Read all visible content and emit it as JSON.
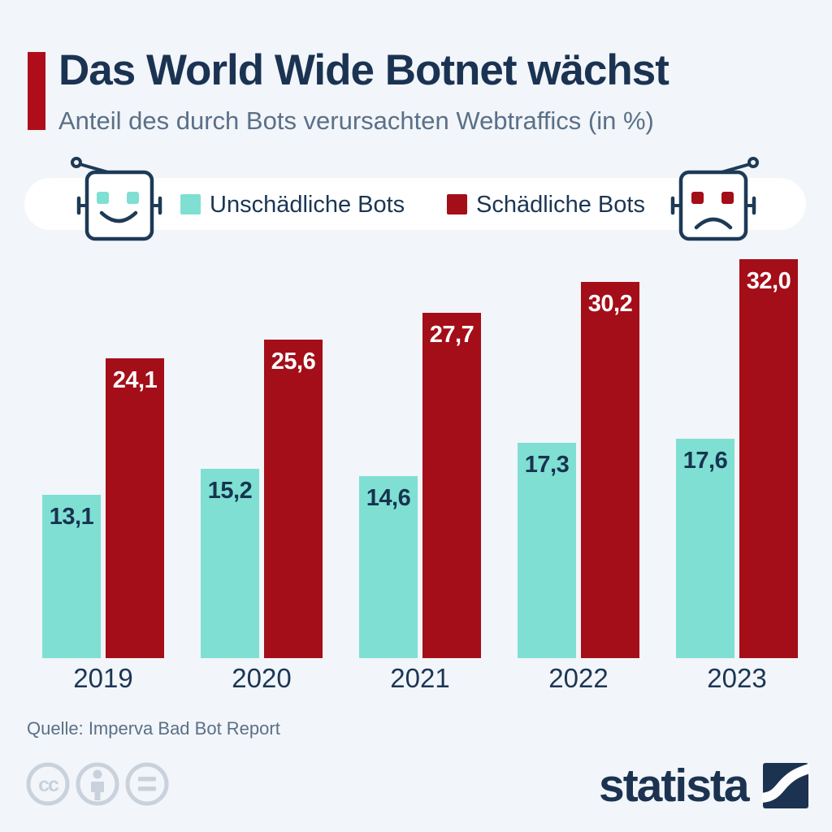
{
  "header": {
    "title": "Das World Wide Botnet wächst",
    "subtitle": "Anteil des durch Bots verursachten Webtraffics (in %)"
  },
  "legend": {
    "items": [
      {
        "label": "Unschädliche Bots",
        "color": "#7fdfd3"
      },
      {
        "label": "Schädliche Bots",
        "color": "#a40e18"
      }
    ]
  },
  "chart_data": {
    "type": "bar",
    "categories": [
      "2019",
      "2020",
      "2021",
      "2022",
      "2023"
    ],
    "series": [
      {
        "name": "Unschädliche Bots",
        "color": "#7fdfd3",
        "values": [
          13.1,
          15.2,
          14.6,
          17.3,
          17.6
        ]
      },
      {
        "name": "Schädliche Bots",
        "color": "#a40e18",
        "values": [
          24.1,
          25.6,
          27.7,
          30.2,
          32.0
        ]
      }
    ],
    "value_labels": [
      [
        "13,1",
        "15,2",
        "14,6",
        "17,3",
        "17,6"
      ],
      [
        "24,1",
        "25,6",
        "27,7",
        "30,2",
        "32,0"
      ]
    ],
    "title": "Das World Wide Botnet wächst",
    "subtitle": "Anteil des durch Bots verursachten Webtraffics (in %)",
    "xlabel": "",
    "ylabel": "",
    "ylim": [
      0,
      33
    ],
    "grid": false,
    "legend_position": "top",
    "decimal_separator": ","
  },
  "footer": {
    "source": "Quelle: Imperva Bad Bot Report",
    "brand": "statista",
    "license_icons": [
      "cc-icon",
      "attribution-icon",
      "nd-icon"
    ]
  },
  "colors": {
    "background": "#f2f5f9",
    "accent_red": "#b00d1a",
    "bar_red": "#a40e18",
    "bar_teal": "#7fdfd3",
    "text_navy": "#1b3352",
    "text_slate": "#5a7088",
    "license_gray": "#c9d2dc",
    "pill_white": "#ffffff"
  }
}
